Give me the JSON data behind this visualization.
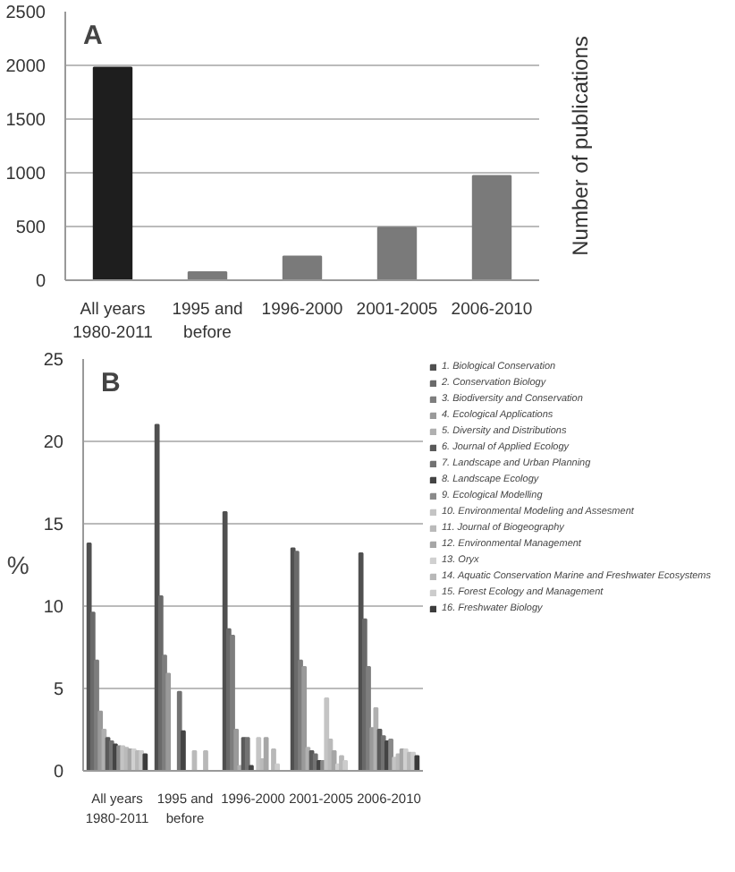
{
  "chart_data": [
    {
      "type": "bar",
      "annotations": [
        "A"
      ],
      "ylabel": "Number of publications",
      "categories": [
        "All years\n1980-2011",
        "1995 and\nbefore",
        "1996-2000",
        "2001-2005",
        "2006-2010"
      ],
      "values": [
        1980,
        75,
        220,
        490,
        970
      ],
      "colors": [
        "#1e1e1e",
        "#7a7a7a",
        "#7a7a7a",
        "#7a7a7a",
        "#7a7a7a"
      ],
      "ylim": [
        0,
        2500
      ],
      "yticks": [
        0,
        500,
        1000,
        1500,
        2000,
        2500
      ],
      "grid": "y"
    },
    {
      "type": "bar",
      "annotations": [
        "B"
      ],
      "ylabel": "%",
      "categories": [
        "All years\n1980-2011",
        "1995 and\nbefore",
        "1996-2000",
        "2001-2005",
        "2006-2010"
      ],
      "ylim": [
        0,
        25
      ],
      "yticks": [
        0,
        5,
        10,
        15,
        20,
        25
      ],
      "grid": "y",
      "legend": "right",
      "series": [
        {
          "name": "1. Biological Conservation",
          "color": "#505050",
          "values": [
            13.8,
            21,
            15.7,
            13.5,
            13.2
          ]
        },
        {
          "name": "2. Conservation Biology",
          "color": "#6a6a6a",
          "values": [
            9.6,
            10.6,
            8.6,
            13.3,
            9.2
          ]
        },
        {
          "name": "3. Biodiversity and Conservation",
          "color": "#7e7e7e",
          "values": [
            6.7,
            7.0,
            8.2,
            6.7,
            6.3
          ]
        },
        {
          "name": "4. Ecological Applications",
          "color": "#9a9a9a",
          "values": [
            3.6,
            5.9,
            2.5,
            6.3,
            2.6
          ]
        },
        {
          "name": "5. Diversity and Distributions",
          "color": "#b0b0b0",
          "values": [
            2.5,
            0,
            0.3,
            1.4,
            3.8
          ]
        },
        {
          "name": "6. Journal of Applied Ecology",
          "color": "#5a5a5a",
          "values": [
            2.0,
            0,
            2.0,
            1.2,
            2.5
          ]
        },
        {
          "name": "7. Landscape and Urban Planning",
          "color": "#727272",
          "values": [
            1.8,
            4.8,
            2.0,
            1.0,
            2.1
          ]
        },
        {
          "name": "8. Landscape Ecology",
          "color": "#444444",
          "values": [
            1.6,
            2.4,
            0.3,
            0.6,
            1.8
          ]
        },
        {
          "name": "9. Ecological Modelling",
          "color": "#8a8a8a",
          "values": [
            1.5,
            0,
            0,
            0.6,
            1.9
          ]
        },
        {
          "name": "10. Environmental Modeling and Assesment",
          "color": "#c4c4c4",
          "values": [
            1.5,
            0,
            2.0,
            4.4,
            0.8
          ]
        },
        {
          "name": "11. Journal of Biogeography",
          "color": "#bababa",
          "values": [
            1.4,
            1.2,
            0.7,
            1.9,
            1.0
          ]
        },
        {
          "name": "12. Environmental Management",
          "color": "#a6a6a6",
          "values": [
            1.3,
            0,
            2.0,
            1.2,
            1.3
          ]
        },
        {
          "name": "13. Oryx",
          "color": "#d0d0d0",
          "values": [
            1.3,
            0,
            0,
            0.4,
            1.3
          ]
        },
        {
          "name": "14. Aquatic Conservation Marine and Freshwater Ecosystems",
          "color": "#b8b8b8",
          "values": [
            1.2,
            1.2,
            1.3,
            0.9,
            1.1
          ]
        },
        {
          "name": "15. Forest Ecology and Management",
          "color": "#cccccc",
          "values": [
            1.2,
            0,
            0.4,
            0.6,
            1.1
          ]
        },
        {
          "name": "16. Freshwater Biology",
          "color": "#3c3c3c",
          "values": [
            1.0,
            0,
            0,
            0,
            0.9
          ]
        }
      ]
    }
  ]
}
